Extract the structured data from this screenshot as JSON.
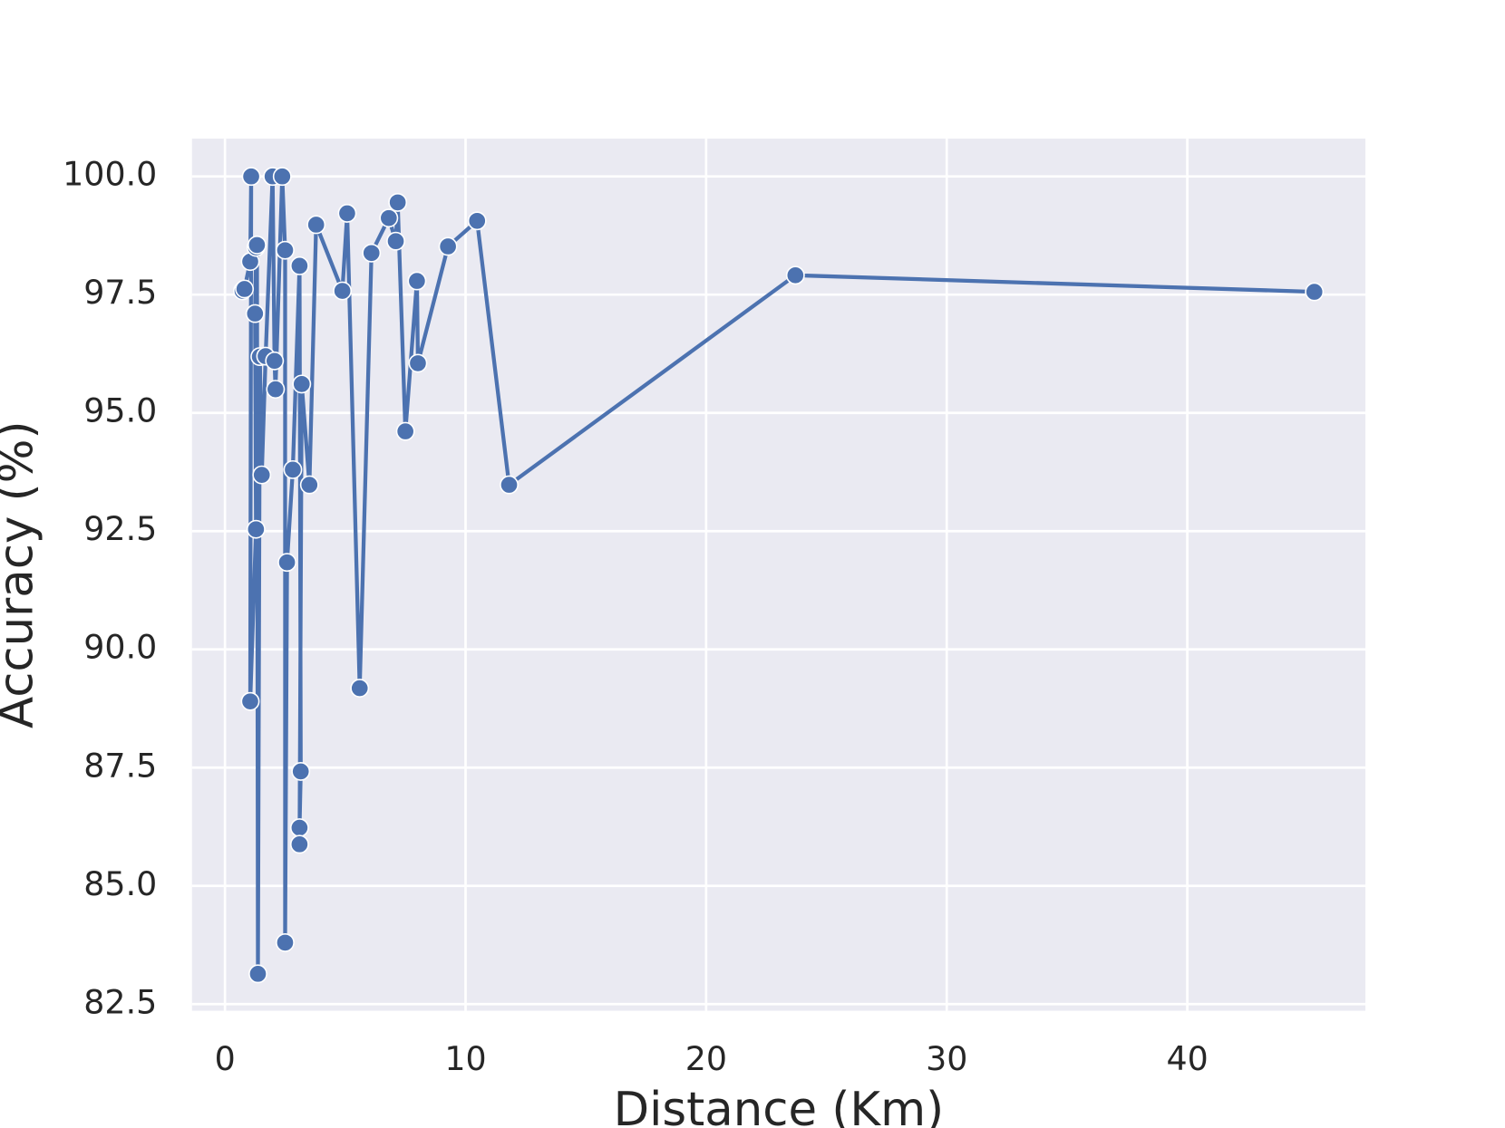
{
  "chart_data": {
    "type": "line",
    "x_label": "Distance (Km)",
    "y_label": "Accuracy (%)",
    "series": [
      {
        "color": "#4c72b0",
        "x": [
          0.73,
          0.81,
          1.05,
          1.09,
          1.05,
          1.29,
          1.25,
          1.29,
          1.33,
          1.37,
          1.45,
          1.53,
          1.69,
          1.98,
          2.06,
          2.1,
          2.38,
          2.5,
          2.5,
          2.58,
          2.82,
          3.1,
          3.15,
          3.1,
          3.1,
          3.19,
          3.51,
          3.79,
          4.88,
          5.08,
          5.6,
          6.09,
          6.81,
          7.1,
          7.18,
          7.5,
          7.98,
          8.02,
          9.27,
          10.48,
          11.81,
          23.71,
          45.28
        ],
        "values": [
          97.58,
          97.62,
          98.2,
          100,
          88.9,
          92.54,
          97.1,
          98.5,
          98.55,
          83.14,
          96.19,
          93.69,
          96.2,
          100,
          96.1,
          95.5,
          100,
          98.44,
          83.8,
          91.84,
          93.8,
          98.11,
          87.42,
          86.23,
          85.88,
          95.61,
          93.48,
          98.98,
          97.58,
          99.22,
          89.18,
          98.38,
          99.12,
          98.63,
          99.45,
          94.61,
          97.79,
          96.05,
          98.52,
          99.06,
          93.48,
          97.91,
          97.56
        ]
      }
    ],
    "xlim": [
      -1.37,
      47.4
    ],
    "ylim": [
      82.36,
      100.8
    ],
    "xticks": [
      0,
      10,
      20,
      30,
      40
    ],
    "yticks": [
      82.5,
      {
        "value": 85,
        "label": "85.0"
      },
      87.5,
      {
        "value": 90,
        "label": "90.0"
      },
      92.5,
      {
        "value": 95,
        "label": "95.0"
      },
      97.5,
      {
        "value": 100,
        "label": "100.0"
      }
    ],
    "grid": true,
    "background": "#eaeaf2"
  }
}
